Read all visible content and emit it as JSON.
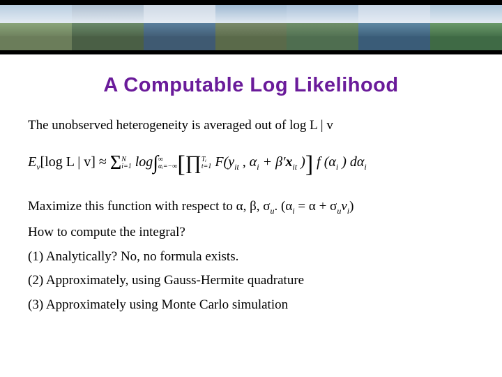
{
  "title": {
    "text": "A Computable Log Likelihood",
    "color": "#6a1b9a",
    "fontsize": 29
  },
  "banner": {
    "height": 78,
    "panels": [
      {
        "sky": "#b8cde0",
        "mid": "#8aa57a",
        "fg": "#6b7d5a"
      },
      {
        "sky": "#aebfd0",
        "mid": "#6a8a6a",
        "fg": "#4a5f45"
      },
      {
        "sky": "#cfd9e5",
        "mid": "#5a7f9c",
        "fg": "#3f5a72"
      },
      {
        "sky": "#9fb9d2",
        "mid": "#7a8a6a",
        "fg": "#5a6a4a"
      },
      {
        "sky": "#a8c0d8",
        "mid": "#6f8f6a",
        "fg": "#4f6e50"
      },
      {
        "sky": "#c8d6e6",
        "mid": "#5f88a2",
        "fg": "#3a5c78"
      },
      {
        "sky": "#b0c8dc",
        "mid": "#6a9a6a",
        "fg": "#3f6a45"
      }
    ]
  },
  "body": {
    "intro": "The unobserved heterogeneity is averaged out of log L | v",
    "formula_parts": {
      "lhs": "E",
      "lhs_sub": "v",
      "lhs_bracket": "[log L | v] ≈ ",
      "sum": "Σ",
      "sum_lo": "i=1",
      "sum_hi": "N",
      "log": " log",
      "int": "∫",
      "int_lo": "αᵢ=−∞",
      "int_hi": "∞",
      "prod": "∏",
      "prod_lo": "t=1",
      "prod_hi": "Tᵢ",
      "Fopen": " F(y",
      "F_sub": "it",
      "Fmid": " , α",
      "ai_sub": "i",
      "plus": " + β′",
      "x": "x",
      "x_sub": "it",
      "Fclose": " )",
      "f": " f (α",
      "f_sub": "i",
      "dalpha": " ) dα",
      "dalpha_sub": "i"
    },
    "maximize": "Maximize this function with respect to α, β, σ",
    "maximize_sub": "u",
    "maximize_tail": ".  (α",
    "maximize_tail_sub": "i",
    "maximize_tail2": " = α + σ",
    "maximize_tail2_sub": "u",
    "maximize_tail3": "v",
    "maximize_tail3_sub": "i",
    "maximize_tail4": ")",
    "howto": "How to compute the integral?",
    "item1": "(1) Analytically? No, no formula exists.",
    "item2": "(2) Approximately, using Gauss-Hermite quadrature",
    "item3": "(3) Approximately using Monte Carlo simulation"
  },
  "colors": {
    "text": "#000000",
    "background": "#ffffff"
  }
}
